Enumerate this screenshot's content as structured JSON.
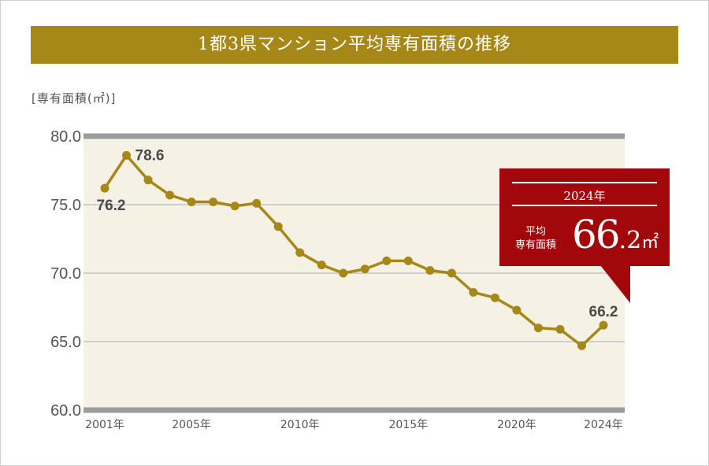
{
  "title": "1都3県マンション平均専有面積の推移",
  "ylabel": "[専有面積(㎡)]",
  "callout": {
    "year": "2024年",
    "label_line1": "平均",
    "label_line2": "専有面積",
    "value_int": "66",
    "value_dec": ".2",
    "unit": "㎡"
  },
  "colors": {
    "accent": "#a68818",
    "line": "#a68818",
    "plot_bg": "#f5f1e4",
    "callout_bg": "#a2070c"
  },
  "chart_data": {
    "type": "line",
    "title": "1都3県マンション平均専有面積の推移",
    "ylabel": "[専有面積(㎡)]",
    "xlabel": "",
    "ylim": [
      60.0,
      80.0
    ],
    "yticks": [
      "60.0",
      "65.0",
      "70.0",
      "75.0",
      "80.0"
    ],
    "xticks": [
      "2001年",
      "2005年",
      "2010年",
      "2015年",
      "2020年",
      "2024年"
    ],
    "x": [
      2001,
      2002,
      2003,
      2004,
      2005,
      2006,
      2007,
      2008,
      2009,
      2010,
      2011,
      2012,
      2013,
      2014,
      2015,
      2016,
      2017,
      2018,
      2019,
      2020,
      2021,
      2022,
      2023,
      2024
    ],
    "series": [
      {
        "values": [
          76.2,
          78.6,
          76.8,
          75.7,
          75.2,
          75.2,
          74.9,
          75.1,
          73.4,
          71.5,
          70.6,
          70.0,
          70.3,
          70.9,
          70.9,
          70.2,
          70.0,
          68.6,
          68.2,
          67.3,
          66.0,
          65.9,
          64.7,
          66.2
        ]
      }
    ],
    "data_labels": [
      {
        "x": 2001,
        "text": "76.2"
      },
      {
        "x": 2002,
        "text": "78.6"
      },
      {
        "x": 2024,
        "text": "66.2"
      }
    ],
    "grid": true
  }
}
